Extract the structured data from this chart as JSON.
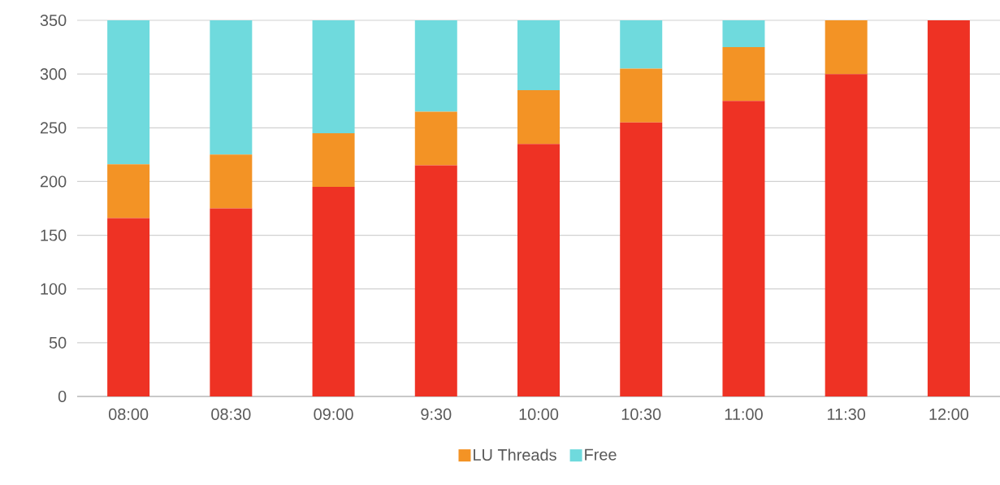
{
  "chart_data": {
    "type": "bar",
    "stacked": true,
    "categories": [
      "08:00",
      "08:30",
      "09:00",
      "9:30",
      "10:00",
      "10:30",
      "11:00",
      "11:30",
      "12:00"
    ],
    "series": [
      {
        "color": "#ee3224",
        "values": [
          166,
          175,
          195,
          215,
          235,
          255,
          275,
          300,
          350
        ]
      },
      {
        "name": "LU Threads",
        "color": "#f39325",
        "values": [
          50,
          50,
          50,
          50,
          50,
          50,
          50,
          50,
          0
        ]
      },
      {
        "name": "Free",
        "color": "#6fdadd",
        "values": [
          134,
          125,
          105,
          85,
          65,
          45,
          25,
          0,
          0
        ]
      }
    ],
    "ylim": [
      0,
      350
    ],
    "yticks": [
      0,
      50,
      100,
      150,
      200,
      250,
      300,
      350
    ],
    "grid": "y",
    "legend": "bottom"
  }
}
